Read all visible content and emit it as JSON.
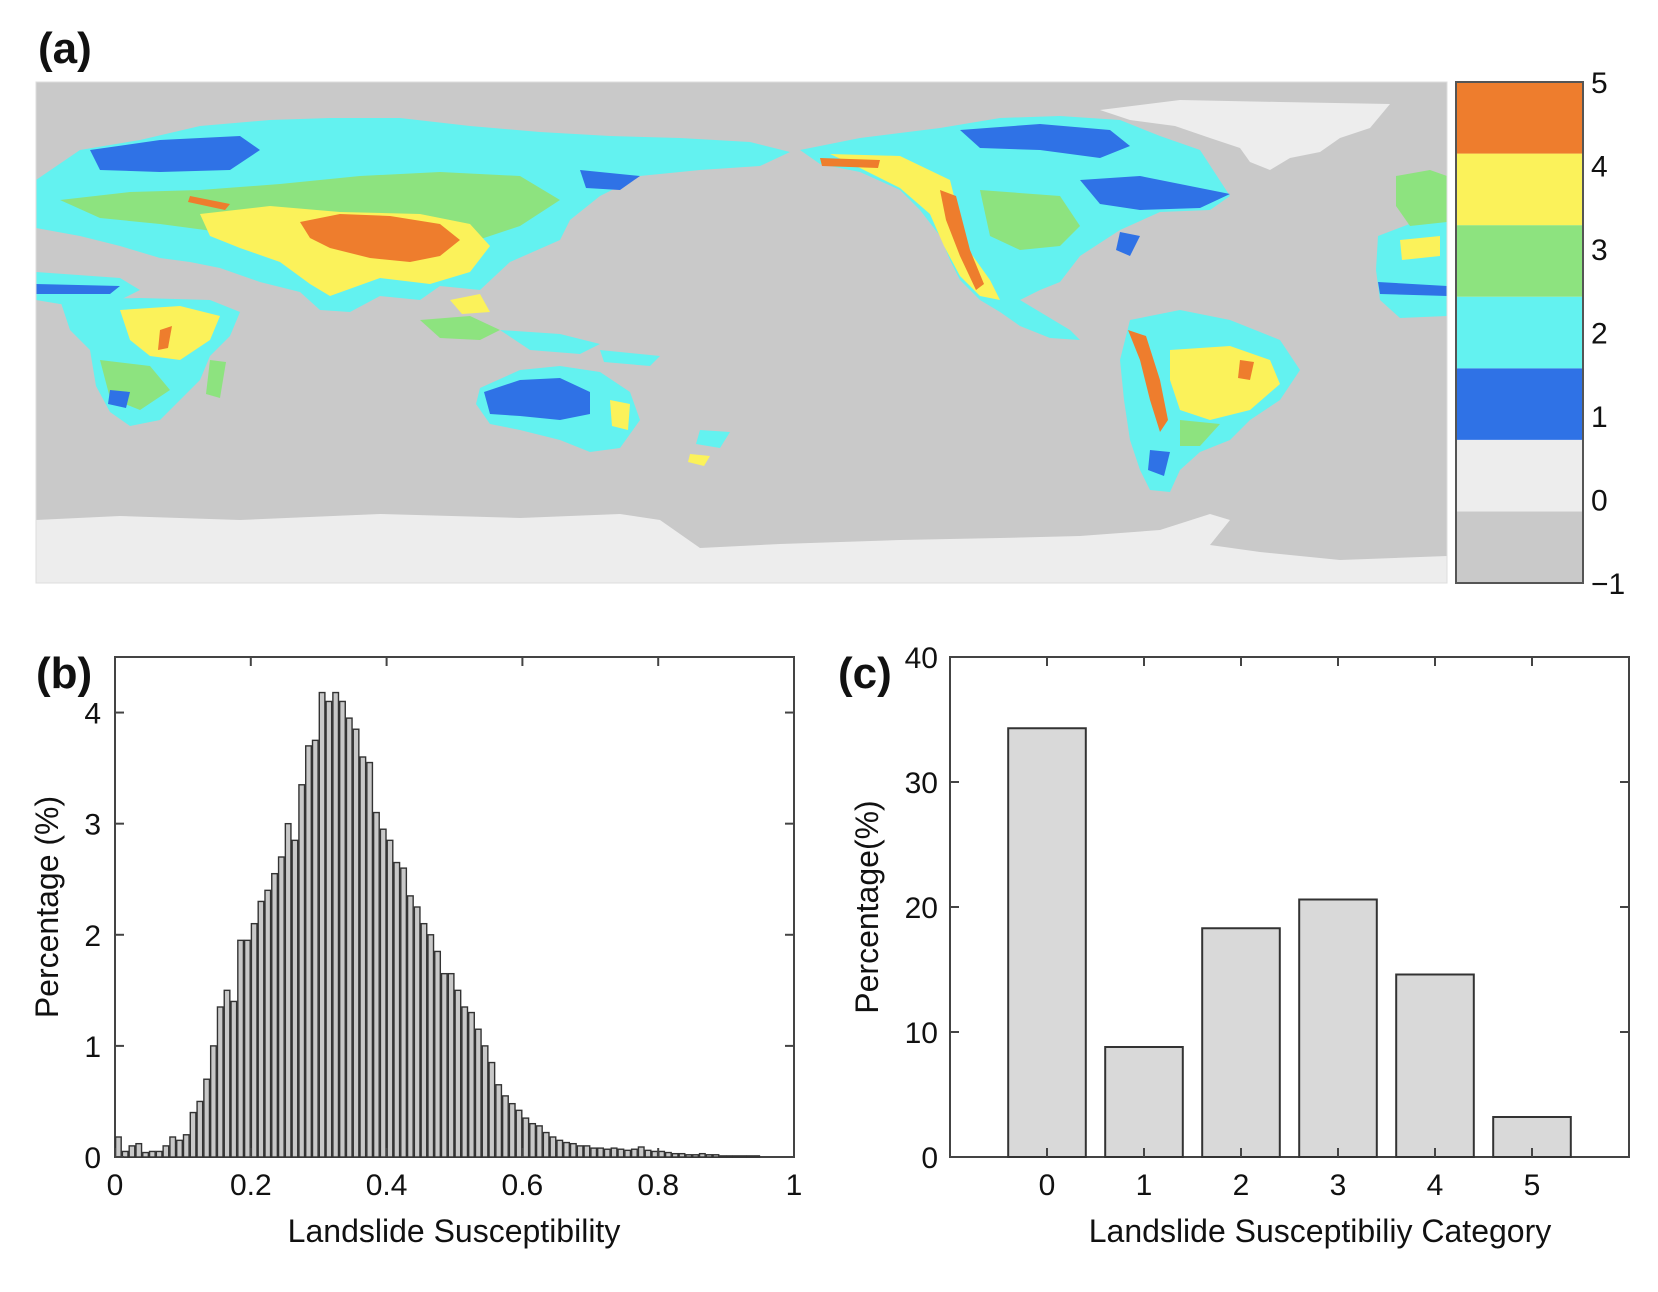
{
  "panels": {
    "a": {
      "label": "(a)"
    },
    "b": {
      "label": "(b)"
    },
    "c": {
      "label": "(c)"
    }
  },
  "chart_data": [
    {
      "id": "a",
      "type": "heatmap",
      "title": "",
      "description_kind": "global map of landslide susceptibility category",
      "colorbar": {
        "range": [
          -1,
          5
        ],
        "ticks": [
          "−1",
          "0",
          "1",
          "2",
          "3",
          "4",
          "5"
        ],
        "tick_values": [
          -1,
          0,
          1,
          2,
          3,
          4,
          5
        ],
        "levels": [
          {
            "range": [
              -1,
              0
            ],
            "color": "#c9c9c9"
          },
          {
            "range": [
              0,
              1
            ],
            "color": "#ededed"
          },
          {
            "range": [
              1,
              2
            ],
            "color": "#2f72e6"
          },
          {
            "range": [
              2,
              3
            ],
            "color": "#63f2f0"
          },
          {
            "range": [
              3,
              4
            ],
            "color": "#8de37f"
          },
          {
            "range": [
              4,
              5
            ],
            "color": "#fbf25a"
          },
          {
            "range": [
              5,
              6
            ],
            "color": "#ee7d2d"
          }
        ],
        "top_level_color": "#ee7d2d"
      },
      "ocean_color": "#c9c9c9",
      "ice_color": "#ededed"
    },
    {
      "id": "b",
      "type": "bar",
      "title": "",
      "xlabel": "Landslide Susceptibility",
      "ylabel": "Percentage (%)",
      "xlim": [
        0,
        1
      ],
      "ylim": [
        0,
        4.5
      ],
      "xticks": [
        0,
        0.2,
        0.4,
        0.6,
        0.8,
        1
      ],
      "xtick_labels": [
        "0",
        "0.2",
        "0.4",
        "0.6",
        "0.8",
        "1"
      ],
      "yticks": [
        0,
        1,
        2,
        3,
        4
      ],
      "ytick_labels": [
        "0",
        "1",
        "2",
        "3",
        "4"
      ],
      "bin_width": 0.01,
      "bar_color": "#c8c8c8",
      "bins": [
        0.005,
        0.015,
        0.025,
        0.035,
        0.045,
        0.055,
        0.065,
        0.075,
        0.085,
        0.095,
        0.105,
        0.115,
        0.125,
        0.135,
        0.145,
        0.155,
        0.165,
        0.175,
        0.185,
        0.195,
        0.205,
        0.215,
        0.225,
        0.235,
        0.245,
        0.255,
        0.265,
        0.275,
        0.285,
        0.295,
        0.305,
        0.315,
        0.325,
        0.335,
        0.345,
        0.355,
        0.365,
        0.375,
        0.385,
        0.395,
        0.405,
        0.415,
        0.425,
        0.435,
        0.445,
        0.455,
        0.465,
        0.475,
        0.485,
        0.495,
        0.505,
        0.515,
        0.525,
        0.535,
        0.545,
        0.555,
        0.565,
        0.575,
        0.585,
        0.595,
        0.605,
        0.615,
        0.625,
        0.635,
        0.645,
        0.655,
        0.665,
        0.675,
        0.685,
        0.695,
        0.705,
        0.715,
        0.725,
        0.735,
        0.745,
        0.755,
        0.765,
        0.775,
        0.785,
        0.795,
        0.805,
        0.815,
        0.825,
        0.835,
        0.845,
        0.855,
        0.865,
        0.875,
        0.885,
        0.895,
        0.905,
        0.915,
        0.925,
        0.935,
        0.945,
        0.955,
        0.965,
        0.975,
        0.985,
        0.995
      ],
      "values": [
        0.18,
        0.05,
        0.1,
        0.12,
        0.04,
        0.05,
        0.05,
        0.1,
        0.18,
        0.15,
        0.2,
        0.4,
        0.5,
        0.7,
        1.0,
        1.35,
        1.5,
        1.4,
        1.95,
        1.95,
        2.1,
        2.3,
        2.4,
        2.55,
        2.7,
        3.0,
        2.85,
        3.35,
        3.7,
        3.75,
        4.18,
        4.1,
        4.18,
        4.1,
        3.95,
        3.85,
        3.6,
        3.55,
        3.1,
        2.95,
        2.85,
        2.65,
        2.6,
        2.35,
        2.25,
        2.1,
        2.0,
        1.85,
        1.65,
        1.65,
        1.5,
        1.35,
        1.3,
        1.15,
        1.0,
        0.85,
        0.65,
        0.55,
        0.48,
        0.42,
        0.35,
        0.3,
        0.28,
        0.22,
        0.18,
        0.15,
        0.13,
        0.12,
        0.1,
        0.1,
        0.08,
        0.08,
        0.07,
        0.08,
        0.07,
        0.06,
        0.07,
        0.09,
        0.06,
        0.05,
        0.05,
        0.04,
        0.03,
        0.03,
        0.02,
        0.02,
        0.03,
        0.02,
        0.02,
        0.01,
        0.01,
        0.01,
        0.01,
        0.01,
        0.01,
        0.0,
        0.0,
        0.0,
        0.0,
        0.0
      ]
    },
    {
      "id": "c",
      "type": "bar",
      "title": "",
      "xlabel": "Landslide Susceptibiliy Category",
      "ylabel": "Percentage(%)",
      "categories": [
        "0",
        "1",
        "2",
        "3",
        "4",
        "5"
      ],
      "values": [
        34.3,
        8.8,
        18.3,
        20.6,
        14.6,
        3.2
      ],
      "ylim": [
        0,
        40
      ],
      "yticks": [
        0,
        10,
        20,
        30,
        40
      ],
      "ytick_labels": [
        "0",
        "10",
        "20",
        "30",
        "40"
      ],
      "xlim": [
        -1,
        6
      ],
      "bar_color": "#d9d9d9"
    }
  ]
}
